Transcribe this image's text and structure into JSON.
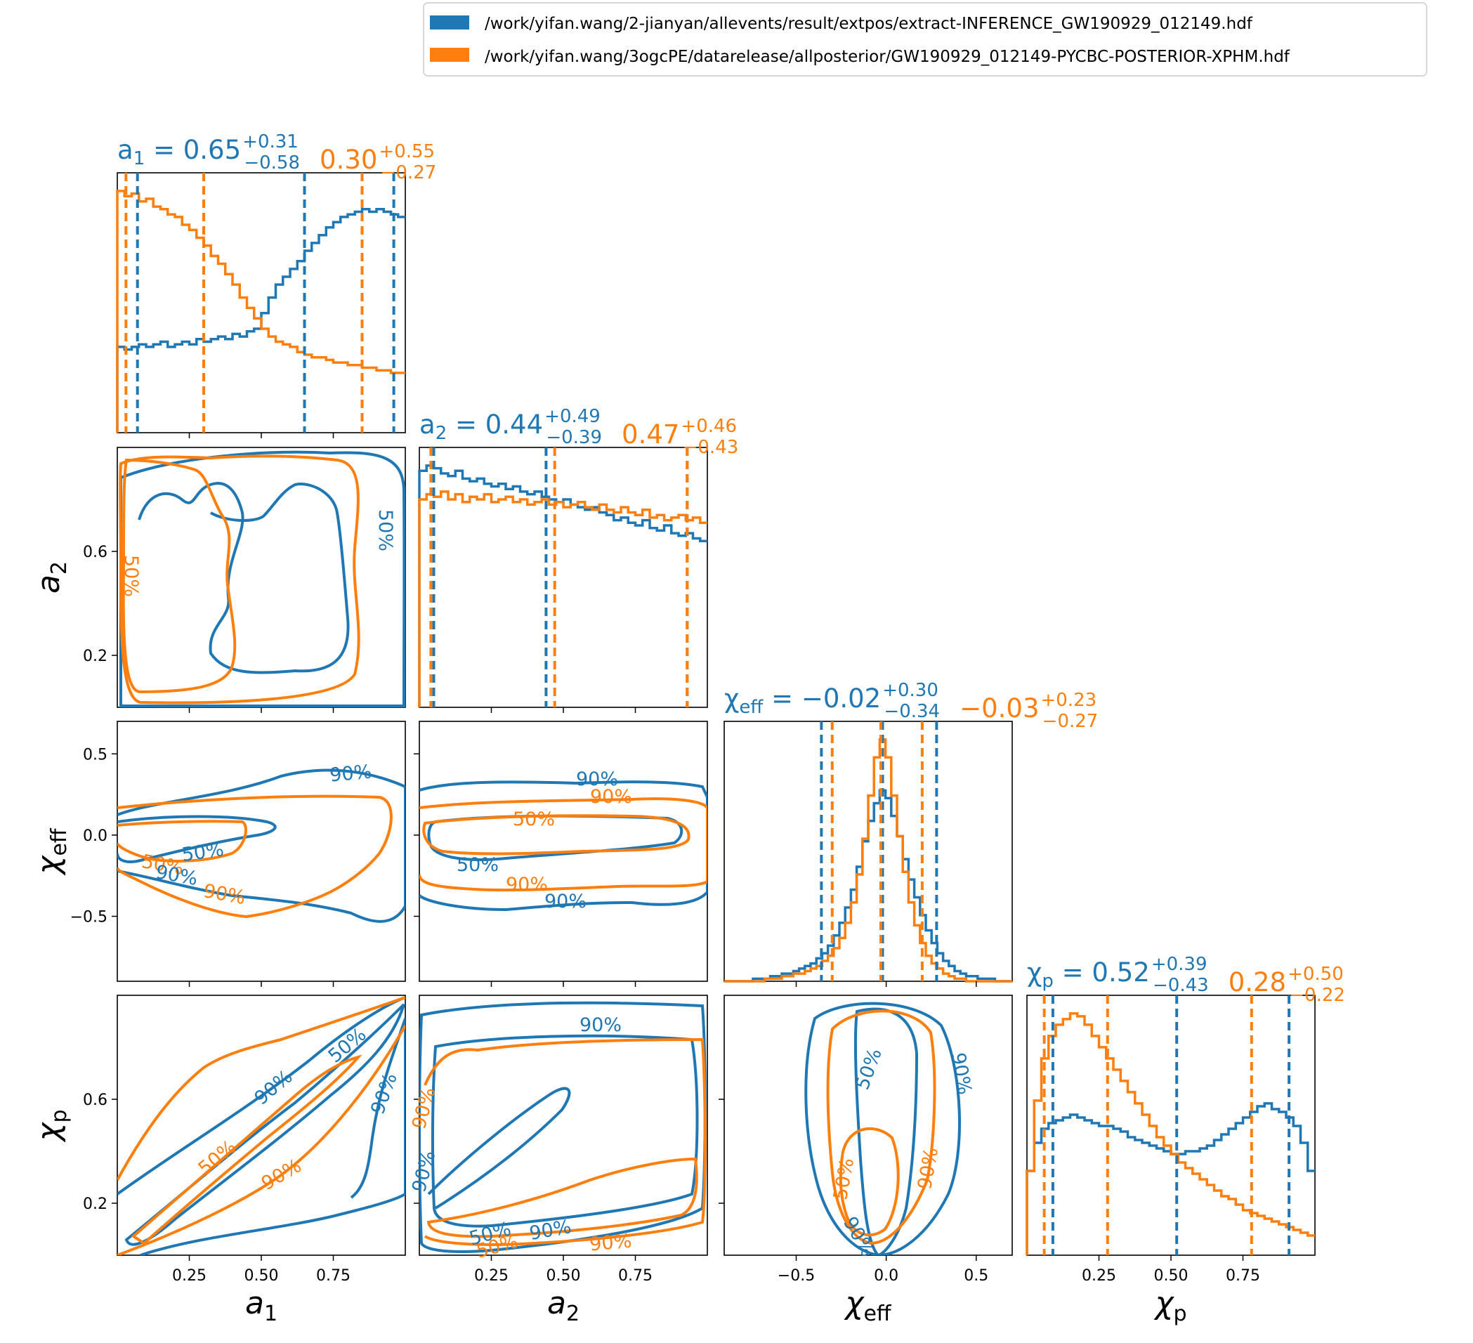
{
  "colors": {
    "blue": "#1f77b4",
    "orange": "#ff7f0e"
  },
  "legend": {
    "placement": "top-right",
    "entries": [
      {
        "label": "/work/yifan.wang/2-jianyan/allevents/result/extpos/extract-INFERENCE_GW190929_012149.hdf",
        "color": "#1f77b4"
      },
      {
        "label": "/work/yifan.wang/3ogcPE/datarelease/allposterior/GW190929_012149-PYCBC-POSTERIOR-XPHM.hdf",
        "color": "#ff7f0e"
      }
    ]
  },
  "chart_data": {
    "type": "corner",
    "parameters": [
      {
        "key": "a1",
        "label_main": "a",
        "label_sub": "1",
        "range": [
          0.0,
          1.0
        ],
        "ticks": [
          0.25,
          0.5,
          0.75
        ],
        "tick_labels": [
          "0.25",
          "0.50",
          "0.75"
        ]
      },
      {
        "key": "a2",
        "label_main": "a",
        "label_sub": "2",
        "range": [
          0.0,
          1.0
        ],
        "ticks": [
          0.2,
          0.6
        ],
        "tick_labels": [
          "0.2",
          "0.6"
        ],
        "x_ticks": [
          0.25,
          0.5,
          0.75
        ],
        "x_tick_labels": [
          "0.25",
          "0.50",
          "0.75"
        ]
      },
      {
        "key": "chi_eff",
        "label_main": "χ",
        "label_sub": "eff",
        "range": [
          -0.9,
          0.7
        ],
        "ticks": [
          -0.5,
          0.0,
          0.5
        ],
        "tick_labels": [
          "−0.5",
          "0.0",
          "0.5"
        ]
      },
      {
        "key": "chi_p",
        "label_main": "χ",
        "label_sub": "p",
        "range": [
          0.0,
          1.0
        ],
        "ticks": [
          0.2,
          0.6
        ],
        "tick_labels": [
          "0.2",
          "0.6"
        ],
        "x_ticks": [
          0.25,
          0.5,
          0.75
        ],
        "x_tick_labels": [
          "0.25",
          "0.50",
          "0.75"
        ]
      }
    ],
    "series": [
      {
        "file": "extract-INFERENCE_GW190929_012149.hdf",
        "color": "#1f77b4",
        "summary": {
          "a1": {
            "median": 0.65,
            "plus": 0.31,
            "minus": 0.58
          },
          "a2": {
            "median": 0.44,
            "plus": 0.49,
            "minus": 0.39
          },
          "chi_eff": {
            "median": -0.02,
            "plus": 0.3,
            "minus": 0.34
          },
          "chi_p": {
            "median": 0.52,
            "plus": 0.39,
            "minus": 0.43
          }
        },
        "histograms": {
          "a1": [
            0.33,
            0.32,
            0.33,
            0.34,
            0.33,
            0.34,
            0.35,
            0.33,
            0.34,
            0.35,
            0.34,
            0.36,
            0.35,
            0.36,
            0.37,
            0.36,
            0.38,
            0.37,
            0.39,
            0.4,
            0.46,
            0.52,
            0.57,
            0.6,
            0.63,
            0.66,
            0.7,
            0.73,
            0.76,
            0.79,
            0.81,
            0.83,
            0.84,
            0.85,
            0.86,
            0.85,
            0.86,
            0.85,
            0.84,
            0.83
          ],
          "a2": [
            0.91,
            0.93,
            0.92,
            0.9,
            0.89,
            0.91,
            0.88,
            0.87,
            0.88,
            0.86,
            0.85,
            0.86,
            0.84,
            0.85,
            0.83,
            0.82,
            0.83,
            0.81,
            0.8,
            0.79,
            0.8,
            0.78,
            0.77,
            0.76,
            0.77,
            0.75,
            0.74,
            0.72,
            0.73,
            0.71,
            0.7,
            0.72,
            0.69,
            0.68,
            0.7,
            0.67,
            0.66,
            0.67,
            0.65,
            0.64
          ],
          "chi_eff": [
            0.0,
            0.0,
            0.0,
            0.0,
            0.0,
            0.01,
            0.01,
            0.01,
            0.02,
            0.02,
            0.03,
            0.03,
            0.04,
            0.05,
            0.06,
            0.07,
            0.09,
            0.11,
            0.14,
            0.18,
            0.23,
            0.29,
            0.36,
            0.45,
            0.55,
            0.63,
            0.7,
            0.75,
            0.72,
            0.65,
            0.57,
            0.48,
            0.4,
            0.33,
            0.26,
            0.2,
            0.15,
            0.11,
            0.08,
            0.06,
            0.04,
            0.03,
            0.02,
            0.02,
            0.01,
            0.01,
            0.01,
            0.0,
            0.0,
            0.0
          ],
          "chi_p": [
            0.3,
            0.4,
            0.45,
            0.47,
            0.48,
            0.49,
            0.5,
            0.49,
            0.48,
            0.47,
            0.46,
            0.46,
            0.45,
            0.44,
            0.42,
            0.41,
            0.4,
            0.39,
            0.38,
            0.37,
            0.36,
            0.36,
            0.37,
            0.37,
            0.38,
            0.39,
            0.41,
            0.43,
            0.45,
            0.47,
            0.49,
            0.51,
            0.53,
            0.54,
            0.52,
            0.51,
            0.49,
            0.46,
            0.4,
            0.3
          ]
        }
      },
      {
        "file": "GW190929_012149-PYCBC-POSTERIOR-XPHM.hdf",
        "color": "#ff7f0e",
        "summary": {
          "a1": {
            "median": 0.3,
            "plus": 0.55,
            "minus": 0.27
          },
          "a2": {
            "median": 0.47,
            "plus": 0.46,
            "minus": 0.43
          },
          "chi_eff": {
            "median": -0.03,
            "plus": 0.23,
            "minus": 0.27
          },
          "chi_p": {
            "median": 0.28,
            "plus": 0.5,
            "minus": 0.22
          }
        },
        "histograms": {
          "a1": [
            0.93,
            0.91,
            0.92,
            0.89,
            0.9,
            0.87,
            0.86,
            0.84,
            0.83,
            0.8,
            0.78,
            0.75,
            0.72,
            0.68,
            0.65,
            0.61,
            0.57,
            0.52,
            0.48,
            0.44,
            0.4,
            0.37,
            0.35,
            0.34,
            0.33,
            0.31,
            0.3,
            0.29,
            0.29,
            0.28,
            0.27,
            0.27,
            0.26,
            0.26,
            0.25,
            0.25,
            0.24,
            0.24,
            0.23,
            0.23
          ],
          "a2": [
            0.8,
            0.82,
            0.81,
            0.83,
            0.8,
            0.82,
            0.79,
            0.81,
            0.8,
            0.82,
            0.79,
            0.8,
            0.81,
            0.79,
            0.8,
            0.78,
            0.79,
            0.8,
            0.78,
            0.79,
            0.77,
            0.78,
            0.79,
            0.77,
            0.76,
            0.78,
            0.76,
            0.75,
            0.77,
            0.75,
            0.74,
            0.76,
            0.73,
            0.74,
            0.72,
            0.73,
            0.74,
            0.72,
            0.73,
            0.71
          ],
          "chi_eff": [
            0.0,
            0.0,
            0.0,
            0.0,
            0.0,
            0.0,
            0.0,
            0.01,
            0.01,
            0.01,
            0.02,
            0.02,
            0.03,
            0.03,
            0.04,
            0.05,
            0.06,
            0.08,
            0.1,
            0.13,
            0.17,
            0.23,
            0.31,
            0.42,
            0.56,
            0.73,
            0.88,
            0.95,
            0.88,
            0.73,
            0.57,
            0.43,
            0.31,
            0.22,
            0.15,
            0.1,
            0.07,
            0.05,
            0.03,
            0.02,
            0.01,
            0.01,
            0.0,
            0.0,
            0.0,
            0.0,
            0.0,
            0.0,
            0.0,
            0.0
          ],
          "chi_p": [
            0.3,
            0.55,
            0.7,
            0.78,
            0.82,
            0.84,
            0.86,
            0.85,
            0.82,
            0.78,
            0.74,
            0.7,
            0.66,
            0.62,
            0.58,
            0.54,
            0.5,
            0.46,
            0.42,
            0.39,
            0.36,
            0.33,
            0.31,
            0.29,
            0.27,
            0.25,
            0.23,
            0.21,
            0.2,
            0.18,
            0.16,
            0.15,
            0.14,
            0.13,
            0.12,
            0.11,
            0.1,
            0.09,
            0.08,
            0.07
          ]
        }
      }
    ],
    "contour_levels": [
      "50%",
      "90%"
    ]
  }
}
